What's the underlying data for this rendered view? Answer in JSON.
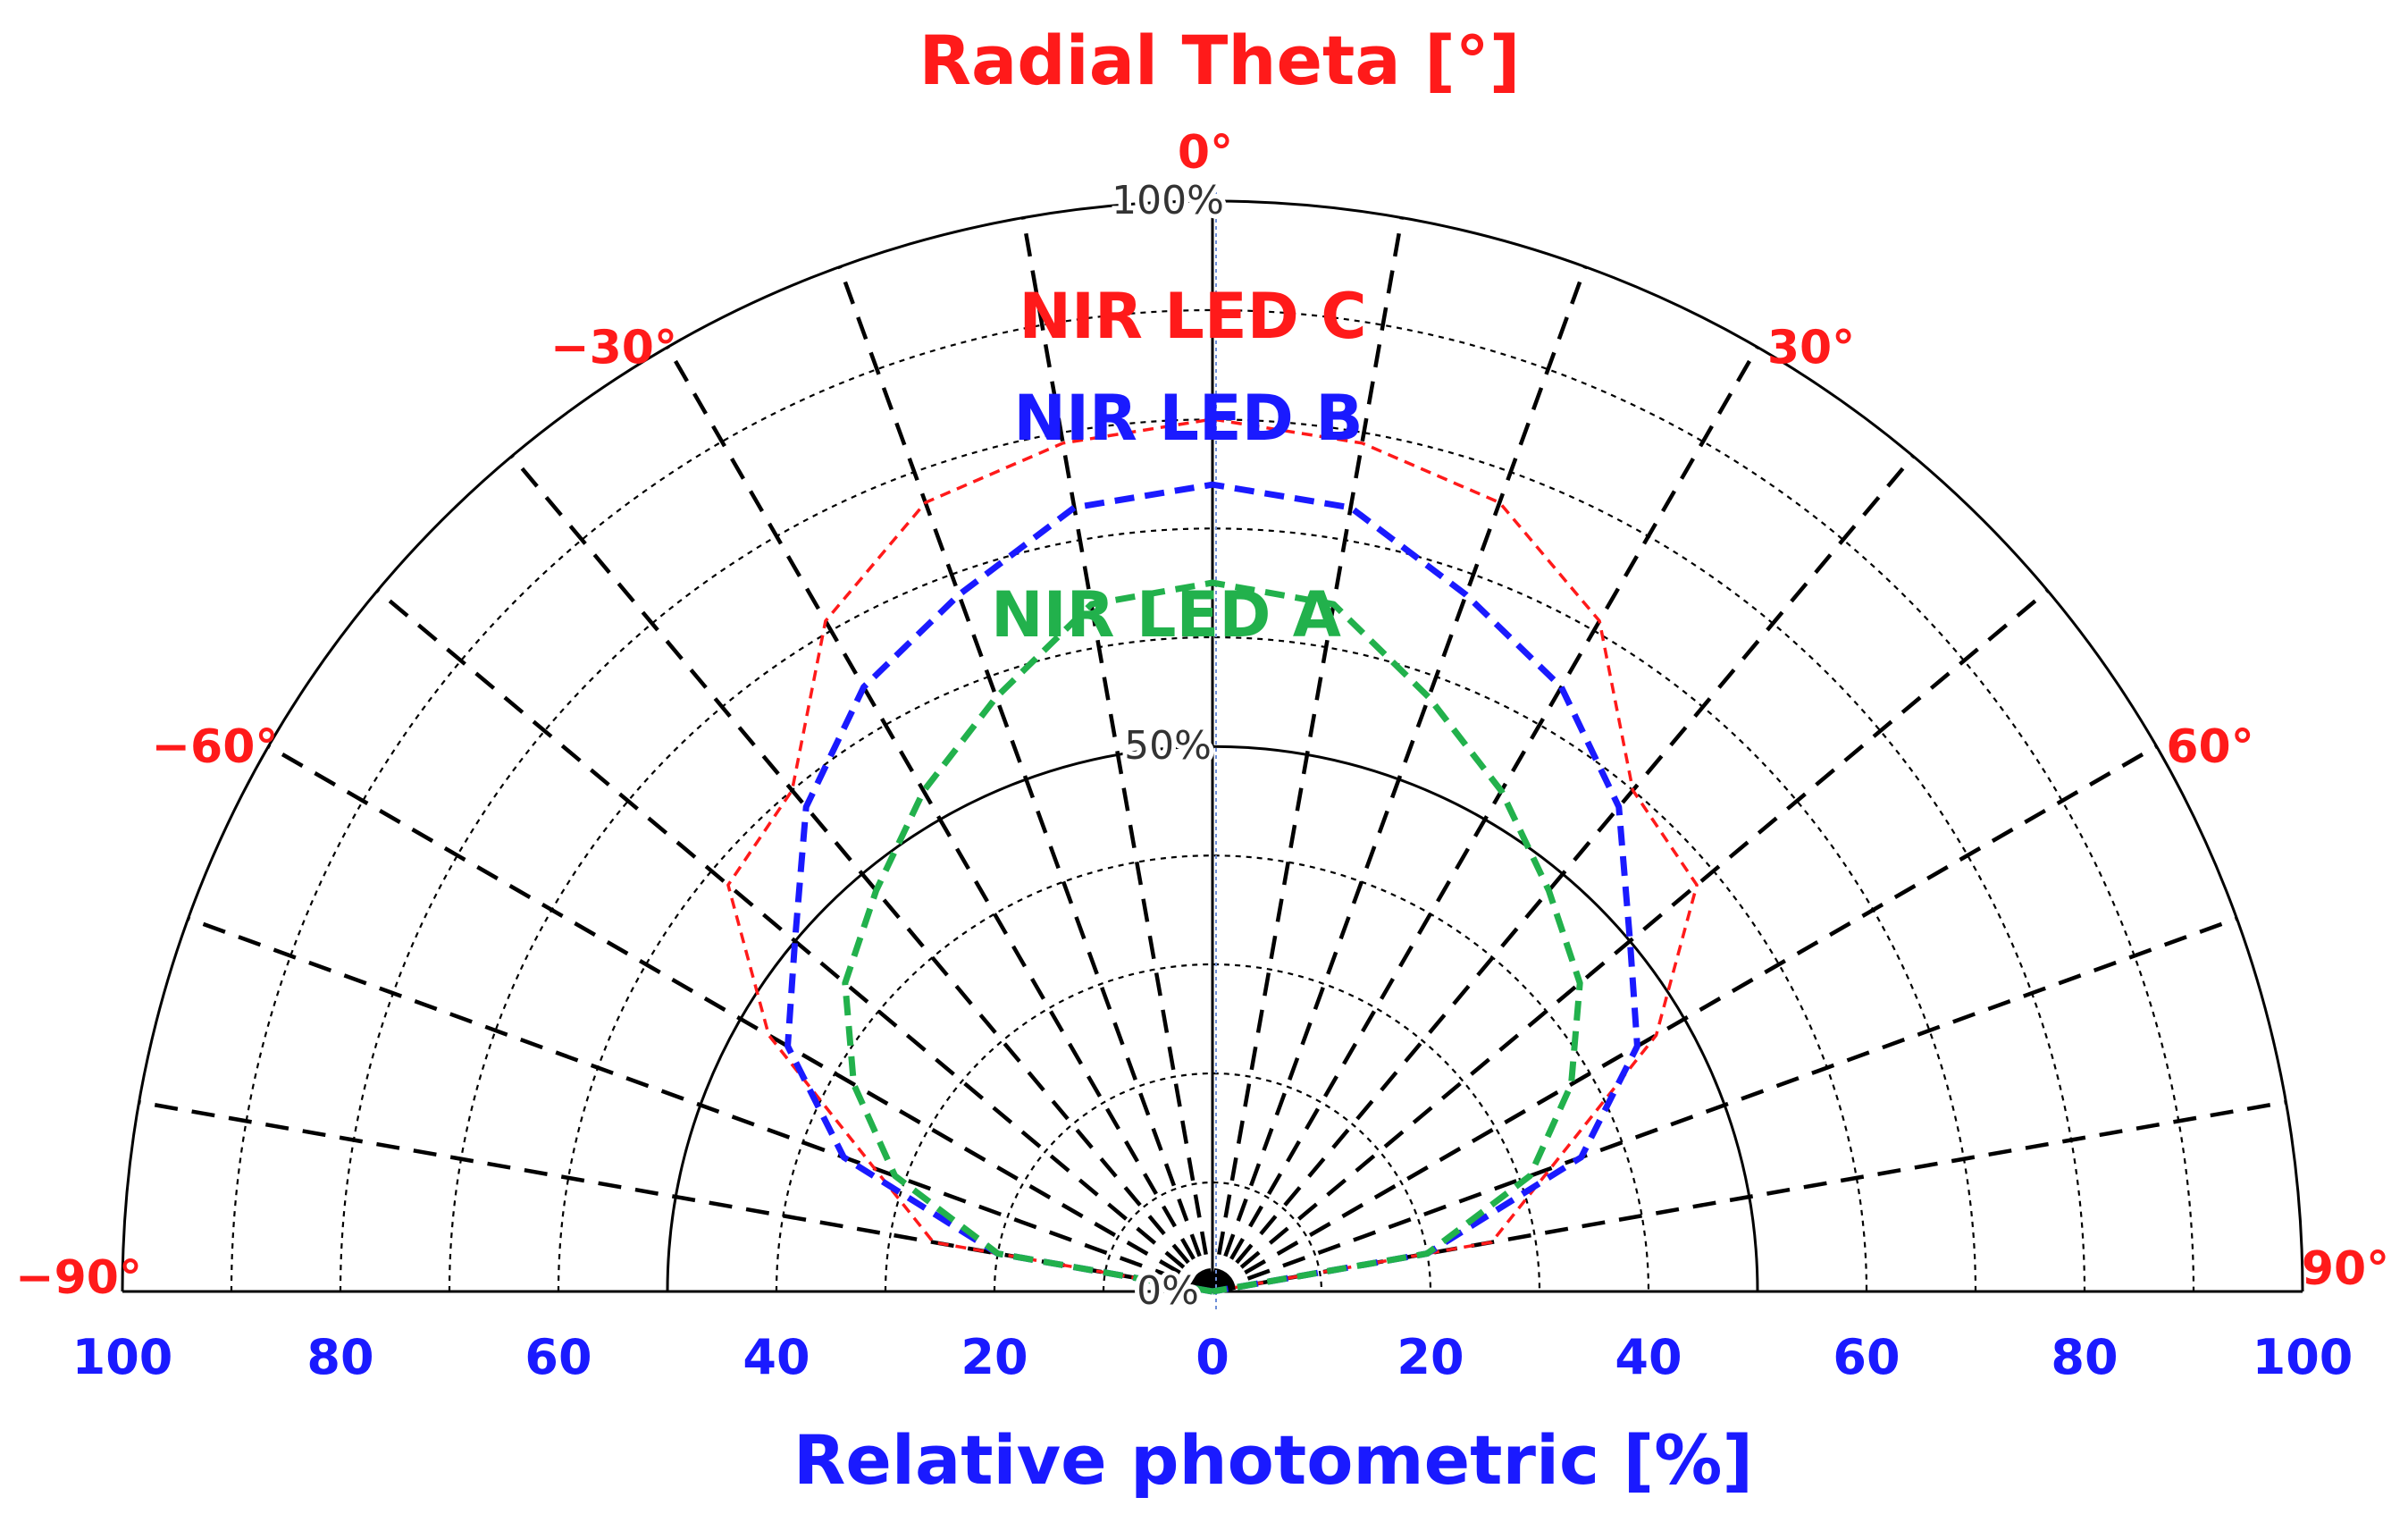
{
  "chart_data": {
    "type": "polar-line",
    "title": "Radial Theta [°]",
    "xlabel": "Relative photometric [%]",
    "theta_range": [
      -90,
      90
    ],
    "radial_range": [
      0,
      100
    ],
    "angle_labels": [
      {
        "angle": -90,
        "text": "−90°"
      },
      {
        "angle": -60,
        "text": "−60°"
      },
      {
        "angle": -30,
        "text": "−30°"
      },
      {
        "angle": 0,
        "text": "0°"
      },
      {
        "angle": 30,
        "text": "30°"
      },
      {
        "angle": 60,
        "text": "60°"
      },
      {
        "angle": 90,
        "text": "90°"
      }
    ],
    "radial_labels": [
      {
        "r": 0,
        "text": "0%"
      },
      {
        "r": 50,
        "text": "50%"
      },
      {
        "r": 100,
        "text": "100%"
      }
    ],
    "x_ticks": [
      {
        "value": -100,
        "text": "100"
      },
      {
        "value": -80,
        "text": "80"
      },
      {
        "value": -60,
        "text": "60"
      },
      {
        "value": -40,
        "text": "40"
      },
      {
        "value": -20,
        "text": "20"
      },
      {
        "value": 0,
        "text": "0"
      },
      {
        "value": 20,
        "text": "20"
      },
      {
        "value": 40,
        "text": "40"
      },
      {
        "value": 60,
        "text": "60"
      },
      {
        "value": 80,
        "text": "80"
      },
      {
        "value": 100,
        "text": "100"
      }
    ],
    "series": [
      {
        "name": "NIR LED C",
        "color": "#ff1a1a",
        "theta": [
          -90,
          -80,
          -70,
          -60,
          -50,
          -40,
          -30,
          -20,
          -10,
          0,
          10,
          20,
          30,
          40,
          50,
          60,
          70,
          80,
          90
        ],
        "r": [
          0,
          26,
          33,
          47,
          58,
          60,
          71,
          77,
          79,
          80,
          79,
          77,
          71,
          60,
          58,
          47,
          33,
          26,
          0
        ]
      },
      {
        "name": "NIR LED B",
        "color": "#1a1aff",
        "theta": [
          -90,
          -80,
          -70,
          -60,
          -50,
          -40,
          -30,
          -20,
          -10,
          0,
          10,
          20,
          30,
          40,
          50,
          60,
          70,
          80,
          90
        ],
        "r": [
          0,
          20,
          36,
          45,
          50,
          58,
          64,
          68,
          73,
          74,
          73,
          68,
          64,
          58,
          50,
          45,
          36,
          20,
          0
        ]
      },
      {
        "name": "NIR LED A",
        "color": "#22b14c",
        "theta": [
          -90,
          -80,
          -70,
          -60,
          -50,
          -40,
          -30,
          -20,
          -10,
          0,
          10,
          20,
          30,
          40,
          50,
          60,
          70,
          80,
          90
        ],
        "r": [
          0,
          20,
          31,
          38,
          44,
          48,
          53,
          58,
          64,
          65,
          64,
          58,
          53,
          48,
          44,
          38,
          31,
          20,
          0
        ]
      }
    ],
    "annotation_colors": {
      "title": "#ff1a1a",
      "xlabel": "#1a1aff",
      "angle_labels": "#ff1a1a",
      "x_ticks": "#1a1aff"
    }
  }
}
